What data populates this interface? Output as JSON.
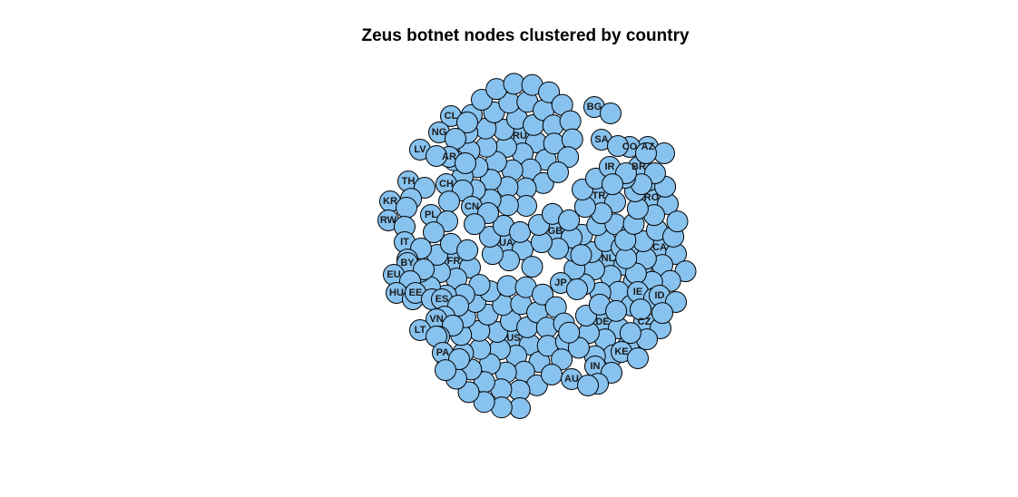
{
  "title": "Zeus botnet nodes clustered by country",
  "colors": {
    "node_fill": "#88C2EE",
    "node_stroke": "#000000",
    "background": "#FFFFFF"
  },
  "chart_data": {
    "type": "cluster",
    "title": "Zeus botnet nodes clustered by country",
    "clusters": [
      {
        "name": "RU",
        "nodes": 43
      },
      {
        "name": "US",
        "nodes": 43
      },
      {
        "name": "NL",
        "nodes": 20
      },
      {
        "name": "CA",
        "nodes": 14
      },
      {
        "name": "DE",
        "nodes": 12
      },
      {
        "name": "FR",
        "nodes": 12
      },
      {
        "name": "UA",
        "nodes": 8
      },
      {
        "name": "GB",
        "nodes": 8
      },
      {
        "name": "RO",
        "nodes": 8
      },
      {
        "name": "TR",
        "nodes": 6
      },
      {
        "name": "BR",
        "nodes": 4
      },
      {
        "name": "CZ",
        "nodes": 4
      },
      {
        "name": "JP",
        "nodes": 2
      },
      {
        "name": "IE",
        "nodes": 3
      },
      {
        "name": "ID",
        "nodes": 3
      },
      {
        "name": "IN",
        "nodes": 3
      },
      {
        "name": "KE",
        "nodes": 2
      },
      {
        "name": "AU",
        "nodes": 2
      },
      {
        "name": "IR",
        "nodes": 3
      },
      {
        "name": "AZ",
        "nodes": 2
      },
      {
        "name": "CO",
        "nodes": 2
      },
      {
        "name": "SA",
        "nodes": 2
      },
      {
        "name": "BG",
        "nodes": 2
      },
      {
        "name": "CL",
        "nodes": 2
      },
      {
        "name": "NG",
        "nodes": 2
      },
      {
        "name": "AR",
        "nodes": 2
      },
      {
        "name": "LV",
        "nodes": 2
      },
      {
        "name": "TH",
        "nodes": 3
      },
      {
        "name": "CH",
        "nodes": 3
      },
      {
        "name": "CN",
        "nodes": 3
      },
      {
        "name": "KR",
        "nodes": 2
      },
      {
        "name": "PL",
        "nodes": 3
      },
      {
        "name": "RW",
        "nodes": 2
      },
      {
        "name": "IT",
        "nodes": 3
      },
      {
        "name": "BY",
        "nodes": 2
      },
      {
        "name": "EU",
        "nodes": 2
      },
      {
        "name": "HU",
        "nodes": 2
      },
      {
        "name": "EE",
        "nodes": 2
      },
      {
        "name": "ES",
        "nodes": 3
      },
      {
        "name": "VN",
        "nodes": 3
      },
      {
        "name": "LT",
        "nodes": 2
      },
      {
        "name": "PA",
        "nodes": 3
      }
    ]
  }
}
